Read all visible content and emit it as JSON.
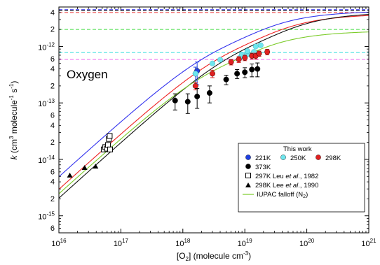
{
  "chart_data": {
    "type": "scatter",
    "panel_label": "Oxygen",
    "xlabel_main": "[O",
    "xlabel_sub": "2",
    "xlabel_rest": "] (molecule cm",
    "xlabel_sup": "-3",
    "xlabel_end": ")",
    "ylabel_k": "k",
    "ylabel_a": " (cm",
    "ylabel_b": "3",
    "ylabel_c": " molecule",
    "ylabel_d": "-1",
    "ylabel_e": " s",
    "ylabel_f": "-1",
    "ylabel_g": ")",
    "x_scale": "log",
    "y_scale": "log",
    "xlim": [
      1e+16,
      1e+21
    ],
    "ylim": [
      5e-16,
      5e-12
    ],
    "x_major_ticks": [
      {
        "value": 1e+16,
        "base": "10",
        "exp": "16"
      },
      {
        "value": 1e+17,
        "base": "10",
        "exp": "17"
      },
      {
        "value": 1e+18,
        "base": "10",
        "exp": "18"
      },
      {
        "value": 1e+19,
        "base": "10",
        "exp": "19"
      },
      {
        "value": 1e+20,
        "base": "10",
        "exp": "20"
      },
      {
        "value": 1e+21,
        "base": "10",
        "exp": "21"
      }
    ],
    "y_major_ticks": [
      {
        "value": 1e-15,
        "base": "10",
        "exp": "-15"
      },
      {
        "value": 1e-14,
        "base": "10",
        "exp": "-14"
      },
      {
        "value": 1e-13,
        "base": "10",
        "exp": "-13"
      },
      {
        "value": 1e-12,
        "base": "10",
        "exp": "-12"
      }
    ],
    "y_minor_labels": [
      {
        "value": 6e-16,
        "label": "6"
      },
      {
        "value": 2e-15,
        "label": "2"
      },
      {
        "value": 4e-15,
        "label": "4"
      },
      {
        "value": 6e-15,
        "label": "6"
      },
      {
        "value": 2e-14,
        "label": "2"
      },
      {
        "value": 4e-14,
        "label": "4"
      },
      {
        "value": 6e-14,
        "label": "6"
      },
      {
        "value": 2e-13,
        "label": "2"
      },
      {
        "value": 4e-13,
        "label": "4"
      },
      {
        "value": 6e-13,
        "label": "6"
      },
      {
        "value": 2e-12,
        "label": "2"
      },
      {
        "value": 4e-12,
        "label": "4"
      }
    ],
    "high_pressure_limits": [
      {
        "temp": "221K",
        "k": 4.5e-12,
        "color": "#3333ee"
      },
      {
        "temp": "250K",
        "k": 7.8e-13,
        "color": "#33dddd"
      },
      {
        "temp": "298K",
        "k": 4e-12,
        "color": "#ee3333"
      },
      {
        "temp": "373K",
        "k": 4.3e-12,
        "color": "#000000"
      },
      {
        "temp": "IUPAC",
        "k": 2e-12,
        "color": "#44dd44"
      },
      {
        "temp": "mid",
        "k": 5.9e-13,
        "color": "#ee66ee"
      }
    ],
    "series": [
      {
        "name": "221K",
        "color": "#1f3fe0",
        "marker": "circle",
        "points": [
          {
            "x": 1.6e+18,
            "y": 3.3e-13,
            "err": 1e-13
          },
          {
            "x": 1.7e+18,
            "y": 3.7e-13,
            "err": 1.6e-13
          }
        ]
      },
      {
        "name": "250K",
        "color": "#6ee6ee",
        "marker": "circle",
        "points": [
          {
            "x": 1.6e+18,
            "y": 3.3e-13,
            "err": 0
          },
          {
            "x": 3e+18,
            "y": 5e-13,
            "err": 0
          },
          {
            "x": 4e+18,
            "y": 5.8e-13,
            "err": 0
          },
          {
            "x": 8.5e+18,
            "y": 6.5e-13,
            "err": 0
          },
          {
            "x": 9e+18,
            "y": 7.2e-13,
            "err": 0
          },
          {
            "x": 1.1e+19,
            "y": 7.3e-13,
            "err": 0
          },
          {
            "x": 1.1e+19,
            "y": 8.3e-13,
            "err": 0
          },
          {
            "x": 1.4e+19,
            "y": 8e-13,
            "err": 0
          },
          {
            "x": 1.5e+19,
            "y": 1e-12,
            "err": 0
          },
          {
            "x": 1.8e+19,
            "y": 1.05e-12,
            "err": 0
          }
        ]
      },
      {
        "name": "298K",
        "color": "#e02020",
        "marker": "circle",
        "points": [
          {
            "x": 1.6e+18,
            "y": 2e-13,
            "err": 3e-14
          },
          {
            "x": 3e+18,
            "y": 3.3e-13,
            "err": 5e-14
          },
          {
            "x": 6e+18,
            "y": 5.3e-13,
            "err": 6e-14
          },
          {
            "x": 8e+18,
            "y": 5.9e-13,
            "err": 7e-14
          },
          {
            "x": 1e+19,
            "y": 6.3e-13,
            "err": 7e-14
          },
          {
            "x": 1.3e+19,
            "y": 6.8e-13,
            "err": 8e-14
          },
          {
            "x": 1.5e+19,
            "y": 6.8e-13,
            "err": 8e-14
          },
          {
            "x": 1.7e+19,
            "y": 7.5e-13,
            "err": 8e-14
          },
          {
            "x": 2.3e+19,
            "y": 8e-13,
            "err": 9e-14
          }
        ]
      },
      {
        "name": "373K",
        "color": "#000000",
        "marker": "circle",
        "points": [
          {
            "x": 7.5e+17,
            "y": 1.1e-13,
            "err": 3.5e-14
          },
          {
            "x": 1.2e+18,
            "y": 1.05e-13,
            "err": 4e-14
          },
          {
            "x": 1.7e+18,
            "y": 1.3e-13,
            "err": 5e-14
          },
          {
            "x": 2.7e+18,
            "y": 1.5e-13,
            "err": 5e-14
          },
          {
            "x": 5e+18,
            "y": 2.6e-13,
            "err": 5e-14
          },
          {
            "x": 7.5e+18,
            "y": 3.3e-13,
            "err": 6e-14
          },
          {
            "x": 1e+19,
            "y": 3.5e-13,
            "err": 7e-14
          },
          {
            "x": 1.3e+19,
            "y": 3.9e-13,
            "err": 1e-13
          },
          {
            "x": 1.6e+19,
            "y": 4e-13,
            "err": 1.1e-13
          }
        ]
      },
      {
        "name": "297K Leu et al., 1982",
        "color": "#000000",
        "marker": "open-square",
        "points": [
          {
            "x": 5.3e+16,
            "y": 1.5e-14
          },
          {
            "x": 5.6e+16,
            "y": 1.65e-14
          },
          {
            "x": 6e+16,
            "y": 1.55e-14
          },
          {
            "x": 6.2e+16,
            "y": 1.8e-14
          },
          {
            "x": 6.4e+16,
            "y": 2.3e-14
          },
          {
            "x": 6.6e+16,
            "y": 2.6e-14
          },
          {
            "x": 6.7e+16,
            "y": 1.5e-14
          }
        ]
      },
      {
        "name": "298K Lee et al., 1990",
        "color": "#000000",
        "marker": "triangle",
        "points": [
          {
            "x": 1.5e+16,
            "y": 5.2e-15
          },
          {
            "x": 2.6e+16,
            "y": 7.1e-15
          },
          {
            "x": 3.9e+16,
            "y": 7.5e-15
          }
        ]
      }
    ],
    "fit_curves": [
      {
        "name": "221K fit",
        "color": "#3333ee",
        "k0": 5.2e-31,
        "kinf": 4.5e-12
      },
      {
        "name": "298K fit",
        "color": "#ee2222",
        "k0": 3.1e-31,
        "kinf": 4e-12
      },
      {
        "name": "373K fit",
        "color": "#111111",
        "k0": 2.15e-31,
        "kinf": 4.3e-12
      },
      {
        "name": "IUPAC falloff (N2)",
        "color": "#7ccc2a",
        "k0": 2.6e-31,
        "kinf": 2e-12
      }
    ],
    "legend": {
      "title": "This work",
      "row1": [
        {
          "label": "221K",
          "color": "#1f3fe0"
        },
        {
          "label": "250K",
          "color": "#6ee6ee"
        },
        {
          "label": "298K",
          "color": "#e02020"
        }
      ],
      "row2": {
        "label": "373K",
        "color": "#000000"
      },
      "leu_a": "297K Leu ",
      "leu_b": "et al",
      "leu_c": "., 1982",
      "lee_a": "298K Lee ",
      "lee_b": "et al",
      "lee_c": "., 1990",
      "iupac_a": "IUPAC falloff (N",
      "iupac_b": "2",
      "iupac_c": ")",
      "iupac_color": "#7ccc2a",
      "placement": "lower-right"
    }
  }
}
